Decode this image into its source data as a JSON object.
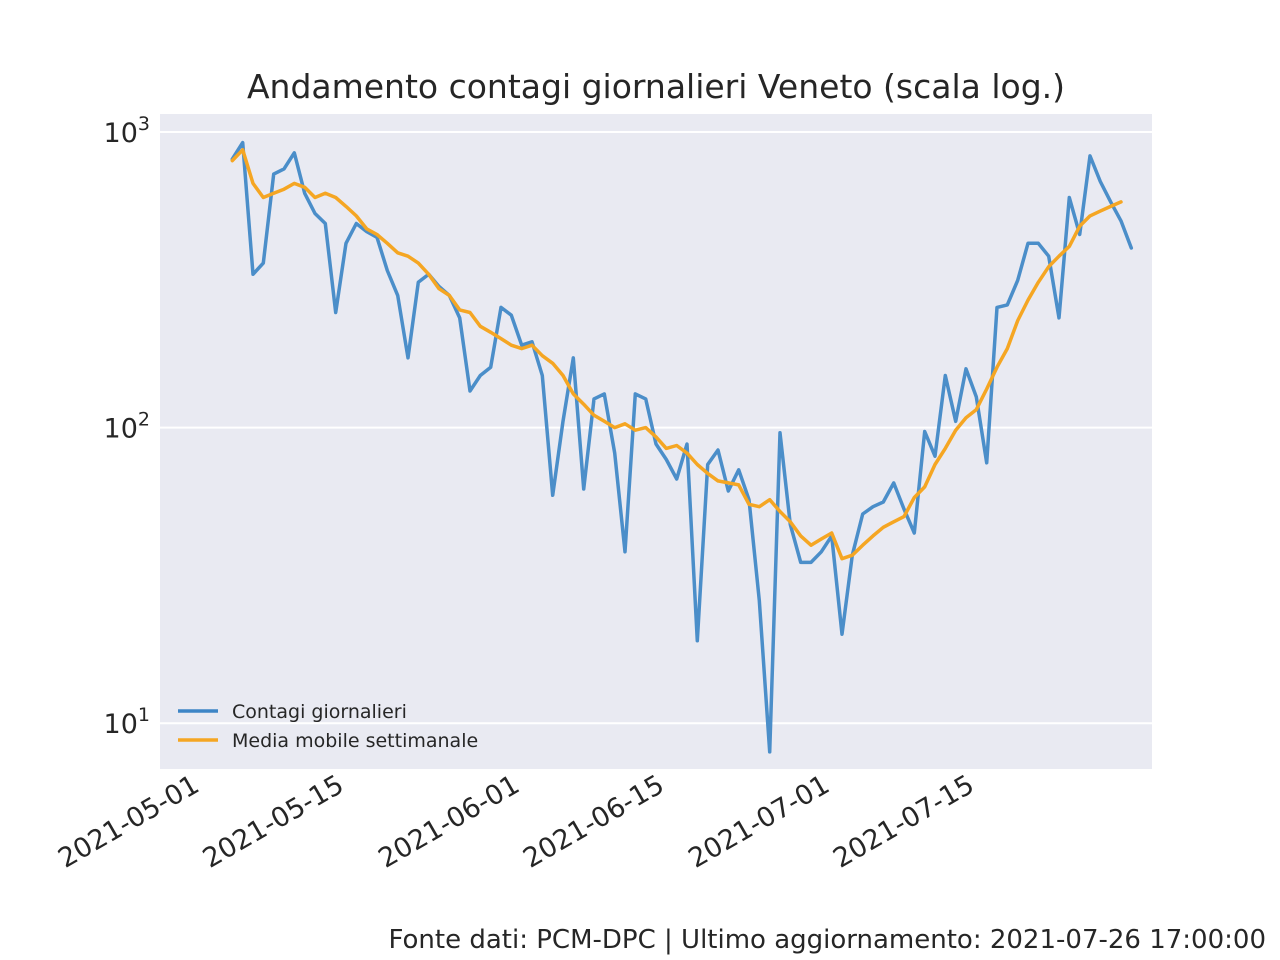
{
  "chart_data": {
    "type": "line",
    "title": "Andamento contagi giornalieri Veneto (scala log.)",
    "xlabel": "",
    "ylabel": "",
    "yscale": "log",
    "ylim": [
      7,
      1150
    ],
    "xlim": [
      "2021-04-28",
      "2021-08-02"
    ],
    "x_tick_labels": [
      "2021-05-01",
      "2021-05-15",
      "2021-06-01",
      "2021-06-15",
      "2021-07-01",
      "2021-07-15"
    ],
    "y_ticks": [
      {
        "value": 10,
        "base": "10",
        "exp": "1"
      },
      {
        "value": 100,
        "base": "10",
        "exp": "2"
      },
      {
        "value": 1000,
        "base": "10",
        "exp": "3"
      }
    ],
    "grid": true,
    "legend_position": "lower-left",
    "x_start": "2021-05-05",
    "series": [
      {
        "name": "Contagi giornalieri",
        "color": "#3d85c6",
        "values": [
          810,
          920,
          330,
          360,
          720,
          750,
          850,
          620,
          530,
          490,
          245,
          420,
          490,
          460,
          440,
          340,
          280,
          172,
          310,
          330,
          300,
          280,
          235,
          133,
          150,
          160,
          255,
          240,
          190,
          195,
          150,
          59,
          105,
          172,
          62,
          125,
          130,
          82,
          38,
          130,
          125,
          88,
          78,
          67,
          88,
          19,
          75,
          84,
          61,
          72,
          57,
          26,
          8,
          96,
          47,
          35,
          35,
          38,
          43,
          20,
          37,
          51,
          54,
          56,
          65,
          53,
          44,
          97,
          80,
          150,
          105,
          158,
          127,
          76,
          255,
          260,
          315,
          420,
          420,
          380,
          235,
          600,
          450,
          830,
          680,
          580,
          500,
          405
        ]
      },
      {
        "name": "Media mobile settimanale",
        "color": "#f5a623",
        "values": [
          800,
          870,
          670,
          600,
          620,
          640,
          670,
          650,
          600,
          620,
          600,
          560,
          520,
          470,
          450,
          420,
          390,
          380,
          360,
          330,
          295,
          280,
          250,
          245,
          220,
          210,
          200,
          190,
          185,
          190,
          175,
          165,
          150,
          130,
          120,
          110,
          105,
          100,
          103,
          98,
          100,
          93,
          85,
          87,
          82,
          75,
          70,
          66,
          65,
          64,
          55,
          54,
          57,
          52,
          48,
          43,
          40,
          42,
          44,
          36,
          37,
          40,
          43,
          46,
          48,
          50,
          58,
          63,
          75,
          85,
          98,
          108,
          115,
          135,
          160,
          185,
          230,
          270,
          310,
          350,
          380,
          410,
          480,
          520,
          540,
          560,
          580
        ]
      }
    ]
  },
  "footer": {
    "source_text": "Fonte dati: PCM-DPC | Ultimo aggiornamento: 2021-07-26 17:00:00"
  }
}
